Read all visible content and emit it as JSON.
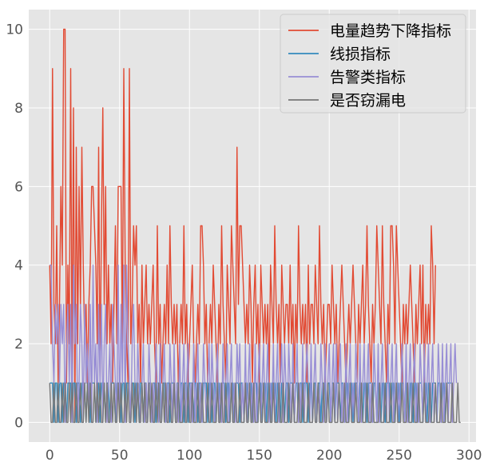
{
  "chart_data": {
    "type": "line",
    "title": "",
    "xlabel": "",
    "ylabel": "",
    "xlim": [
      -15,
      305
    ],
    "ylim": [
      -0.5,
      10.5
    ],
    "x_ticks": [
      0,
      50,
      100,
      150,
      200,
      250,
      300
    ],
    "y_ticks": [
      0,
      2,
      4,
      6,
      8,
      10
    ],
    "x_tick_labels": [
      "0",
      "50",
      "100",
      "150",
      "200",
      "250",
      "300"
    ],
    "y_tick_labels": [
      "0",
      "2",
      "4",
      "6",
      "8",
      "10"
    ],
    "grid": true,
    "legend_position": "top-right",
    "series": [
      {
        "name": "电量趋势下降指标",
        "color": "#e24a33",
        "x_start": 0,
        "values": [
          4,
          2,
          9,
          3,
          2,
          5,
          1,
          3,
          6,
          4,
          10,
          10,
          1,
          4,
          2,
          9,
          1,
          8,
          0,
          7,
          2,
          6,
          3,
          7,
          4,
          2,
          3,
          1,
          3,
          4,
          6,
          6,
          5,
          4,
          2,
          7,
          1,
          5,
          8,
          3,
          6,
          2,
          4,
          2,
          3,
          1,
          3,
          5,
          2,
          6,
          6,
          6,
          2,
          9,
          4,
          2,
          1,
          9,
          2,
          3,
          5,
          4,
          5,
          2,
          3,
          1,
          4,
          2,
          3,
          4,
          2,
          3,
          2,
          3,
          4,
          2,
          1,
          5,
          2,
          3,
          1,
          2,
          3,
          2,
          4,
          2,
          5,
          3,
          2,
          3,
          2,
          3,
          1,
          2,
          3,
          2,
          5,
          2,
          3,
          1,
          2,
          3,
          4,
          2,
          1,
          2,
          3,
          2,
          5,
          5,
          4,
          2,
          3,
          1,
          2,
          3,
          2,
          4,
          3,
          2,
          1,
          3,
          2,
          5,
          3,
          2,
          1,
          4,
          3,
          2,
          5,
          4,
          3,
          2,
          7,
          3,
          5,
          5,
          4,
          3,
          2,
          3,
          2,
          4,
          3,
          1,
          3,
          4,
          2,
          3,
          1,
          4,
          3,
          2,
          3,
          2,
          3,
          1,
          4,
          3,
          2,
          5,
          3,
          2,
          3,
          1,
          4,
          3,
          2,
          3,
          3,
          2,
          4,
          2,
          3,
          1,
          3,
          2,
          5,
          3,
          2,
          3,
          2,
          3,
          1,
          4,
          2,
          3,
          3,
          2,
          4,
          3,
          2,
          5,
          3,
          2,
          3,
          1,
          2,
          3,
          3,
          2,
          4,
          3,
          2,
          3,
          1,
          2,
          3,
          4,
          3,
          2,
          1,
          2,
          3,
          2,
          3,
          4,
          3,
          2,
          1,
          3,
          2,
          3,
          4,
          2,
          3,
          5,
          3,
          2,
          1,
          3,
          2,
          3,
          5,
          4,
          3,
          2,
          5,
          3,
          2,
          1,
          3,
          2,
          5,
          5,
          4,
          2,
          5,
          4,
          3,
          2,
          1,
          3,
          2,
          3,
          2,
          3,
          4,
          3,
          2,
          1,
          3,
          2,
          3,
          4,
          2,
          4,
          1,
          3,
          2,
          3,
          2,
          5,
          4,
          2,
          4
        ]
      },
      {
        "name": "线损指标",
        "color": "#348abd",
        "x_start": 0,
        "values": [
          1,
          1,
          1,
          0,
          1,
          1,
          0,
          1,
          1,
          0,
          1,
          1,
          0,
          1,
          1,
          1,
          0,
          1,
          1,
          0,
          1,
          1,
          0,
          1,
          1,
          1,
          0,
          1,
          1,
          0,
          1,
          1,
          1,
          0,
          1,
          1,
          0,
          1,
          1,
          1,
          0,
          1,
          1,
          0,
          1,
          1,
          1,
          0,
          1,
          1,
          1,
          0,
          1,
          1,
          0,
          1,
          1,
          1,
          0,
          1,
          1,
          0,
          1,
          1,
          0,
          1,
          1,
          0,
          1,
          1,
          0,
          1,
          1,
          0,
          1,
          1,
          0,
          1,
          1,
          1,
          0,
          1,
          1,
          0,
          1,
          1,
          0,
          1,
          1,
          1,
          0,
          1,
          1,
          0,
          1,
          1,
          0,
          1,
          1,
          0,
          1,
          1,
          1,
          0,
          1,
          1,
          0,
          1,
          1,
          0,
          1,
          1,
          1,
          0,
          1,
          1,
          0,
          1,
          1,
          0,
          1,
          1,
          0,
          1,
          1,
          1,
          0,
          1,
          1,
          0,
          1,
          1,
          0,
          1,
          1,
          1,
          0,
          1,
          1,
          0,
          1,
          1,
          0,
          1,
          1,
          0,
          1,
          1,
          1,
          0,
          1,
          1,
          0,
          1,
          1,
          0,
          1,
          1,
          0,
          1,
          1,
          1,
          0,
          1,
          1,
          0,
          1,
          1,
          0,
          1,
          1,
          0,
          1,
          1,
          1,
          0,
          1,
          1,
          0,
          1,
          1,
          0,
          1,
          1,
          1,
          0,
          1,
          1,
          0,
          1,
          1,
          0,
          1,
          1,
          0,
          1,
          1,
          1,
          0,
          1,
          1,
          0,
          1,
          1,
          0,
          1,
          1,
          1,
          0,
          1,
          1,
          0,
          1,
          1,
          0,
          1,
          1,
          0,
          1,
          1,
          1,
          0,
          1,
          1,
          0,
          1,
          1,
          0,
          1,
          1,
          1,
          0,
          1,
          1,
          0,
          1,
          1,
          0,
          1,
          1,
          0,
          1,
          1,
          1,
          0,
          1,
          1,
          0,
          1,
          1,
          0,
          1,
          1,
          1,
          0,
          1,
          1,
          0,
          1,
          1,
          0,
          1,
          1,
          0,
          1,
          1,
          1,
          0,
          1,
          1,
          0,
          1,
          1,
          0,
          1,
          1,
          1,
          0,
          1,
          1,
          0,
          1,
          1,
          0,
          1,
          1,
          1,
          1
        ]
      },
      {
        "name": "告警类指标",
        "color": "#988ed5",
        "x_start": 0,
        "values": [
          4,
          4,
          2,
          1,
          3,
          2,
          3,
          1,
          3,
          2,
          3,
          0,
          2,
          3,
          1,
          3,
          0,
          4,
          2,
          3,
          0,
          1,
          3,
          2,
          0,
          3,
          1,
          2,
          0,
          3,
          0,
          4,
          1,
          2,
          0,
          3,
          1,
          3,
          0,
          2,
          3,
          0,
          1,
          2,
          0,
          3,
          2,
          1,
          0,
          4,
          0,
          3,
          1,
          4,
          0,
          4,
          2,
          1,
          0,
          2,
          3,
          1,
          0,
          2,
          1,
          0,
          1,
          2,
          0,
          1,
          0,
          2,
          1,
          0,
          1,
          0,
          2,
          1,
          0,
          2,
          0,
          1,
          2,
          0,
          1,
          0,
          2,
          1,
          0,
          2,
          0,
          1,
          0,
          2,
          0,
          1,
          2,
          0,
          1,
          2,
          0,
          1,
          0,
          2,
          0,
          1,
          2,
          0,
          1,
          0,
          2,
          1,
          0,
          1,
          2,
          0,
          2,
          1,
          0,
          1,
          2,
          0,
          1,
          0,
          2,
          0,
          1,
          2,
          0,
          1,
          2,
          0,
          1,
          0,
          2,
          1,
          2,
          0,
          1,
          0,
          2,
          0,
          1,
          2,
          0,
          1,
          0,
          2,
          0,
          1,
          2,
          0,
          1,
          2,
          0,
          1,
          2,
          0,
          1,
          0,
          2,
          0,
          1,
          2,
          0,
          1,
          2,
          0,
          2,
          1,
          0,
          2,
          1,
          0,
          2,
          0,
          1,
          2,
          0,
          1,
          0,
          2,
          0,
          1,
          2,
          1,
          0,
          2,
          0,
          1,
          2,
          0,
          1,
          0,
          2,
          1,
          0,
          2,
          0,
          1,
          2,
          0,
          1,
          2,
          0,
          2,
          0,
          1,
          2,
          0,
          1,
          0,
          2,
          0,
          1,
          2,
          0,
          1,
          0,
          2,
          1,
          0,
          2,
          0,
          1,
          2,
          0,
          1,
          2,
          0,
          1,
          0,
          2,
          1,
          0,
          2,
          0,
          1,
          2,
          0,
          1,
          0,
          2,
          0,
          1,
          2,
          0,
          1,
          2,
          0,
          1,
          0,
          2,
          1,
          0,
          2,
          0,
          1,
          2,
          0,
          1,
          2,
          0,
          1,
          0,
          2,
          1,
          0,
          2,
          0,
          1,
          2,
          0,
          1,
          2,
          0,
          1,
          0,
          2,
          1,
          0,
          2,
          0,
          1,
          2,
          0,
          1,
          2,
          0,
          1,
          2,
          1
        ]
      },
      {
        "name": "是否窃漏电",
        "color": "#777777",
        "x_start": 0,
        "values": [
          1,
          0,
          0,
          1,
          0,
          0,
          1,
          0,
          0,
          1,
          0,
          1,
          0,
          0,
          1,
          0,
          1,
          0,
          0,
          1,
          0,
          0,
          1,
          0,
          0,
          1,
          0,
          1,
          0,
          1,
          0,
          0,
          1,
          0,
          1,
          0,
          1,
          0,
          0,
          1,
          0,
          1,
          0,
          0,
          1,
          0,
          1,
          0,
          0,
          1,
          0,
          1,
          0,
          0,
          1,
          0,
          1,
          0,
          0,
          1,
          0,
          1,
          0,
          1,
          0,
          0,
          1,
          0,
          1,
          0,
          0,
          1,
          0,
          1,
          0,
          0,
          1,
          0,
          1,
          0,
          0,
          1,
          0,
          1,
          0,
          0,
          1,
          0,
          0,
          1,
          0,
          0,
          1,
          0,
          0,
          0,
          1,
          0,
          0,
          1,
          0,
          0,
          1,
          0,
          0,
          0,
          1,
          0,
          0,
          1,
          0,
          0,
          0,
          1,
          0,
          0,
          1,
          0,
          0,
          0,
          1,
          0,
          0,
          1,
          0,
          0,
          1,
          0,
          0,
          0,
          1,
          0,
          0,
          1,
          0,
          0,
          1,
          0,
          0,
          0,
          1,
          0,
          0,
          1,
          0,
          0,
          1,
          0,
          0,
          0,
          1,
          0,
          0,
          1,
          0,
          0,
          0,
          1,
          0,
          0,
          1,
          0,
          0,
          0,
          1,
          0,
          0,
          1,
          0,
          0,
          0,
          1,
          0,
          0,
          1,
          0,
          0,
          0,
          1,
          0,
          0,
          1,
          0,
          0,
          0,
          1,
          0,
          0,
          0,
          1,
          0,
          0,
          1,
          0,
          0,
          0,
          1,
          0,
          0,
          1,
          0,
          0,
          0,
          1,
          0,
          0,
          0,
          1,
          0,
          0,
          0,
          1,
          0,
          0,
          0,
          1,
          0,
          0,
          0,
          1,
          0,
          0,
          0,
          1,
          0,
          0,
          0,
          1,
          0,
          0,
          0,
          1,
          0,
          0,
          0,
          0,
          1,
          0,
          0,
          0,
          1,
          0,
          0,
          0,
          1,
          0,
          0,
          0,
          1,
          0,
          0,
          0,
          1,
          0,
          0,
          0,
          1,
          0,
          0,
          0,
          1,
          0,
          0,
          0,
          1,
          0,
          0,
          0,
          1,
          0,
          0,
          0,
          1,
          0,
          0,
          0,
          1,
          0,
          0,
          0,
          1,
          0,
          0,
          0,
          1,
          0,
          0,
          0,
          1,
          0,
          0,
          0,
          1,
          0,
          0
        ]
      }
    ]
  }
}
